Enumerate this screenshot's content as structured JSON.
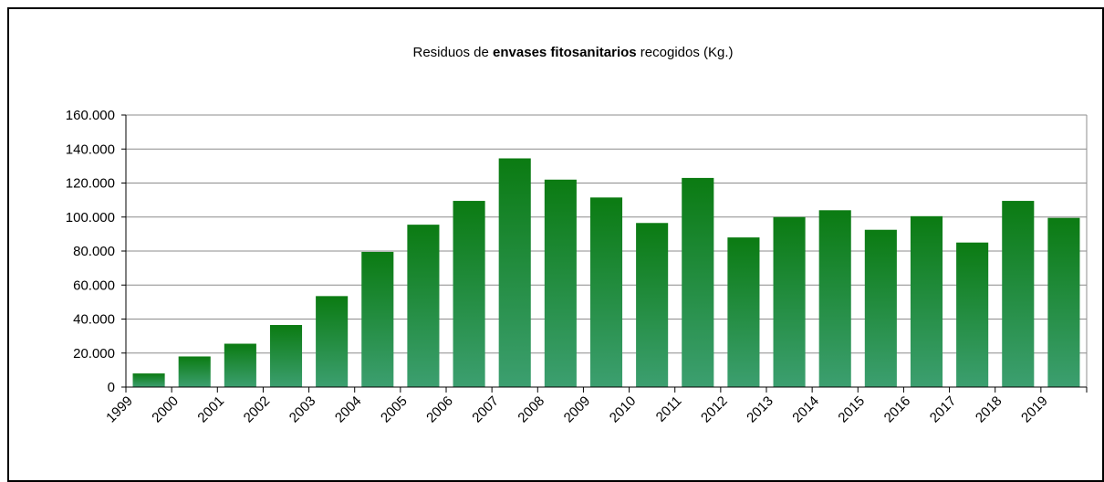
{
  "chart_data": {
    "type": "bar",
    "title": [
      "Residuos de",
      "envases fitosanitarios",
      "recogidos (Kg.)"
    ],
    "categories": [
      "1999",
      "2000",
      "2001",
      "2002",
      "2003",
      "2004",
      "2005",
      "2006",
      "2007",
      "2008",
      "2009",
      "2010",
      "2011",
      "2012",
      "2013",
      "2014",
      "2015",
      "2016",
      "2017",
      "2018",
      "2019"
    ],
    "values": [
      8000,
      18000,
      25500,
      36500,
      53500,
      79500,
      95500,
      109500,
      134500,
      122000,
      111500,
      96500,
      123000,
      88000,
      100000,
      104000,
      92500,
      100500,
      85000,
      109500,
      99500
    ],
    "color": [
      "#0b7b12",
      "#3c9f70"
    ],
    "ylim": [
      0,
      160000
    ],
    "yticks": [
      0,
      {
        "value": 20000,
        "label": "20.000"
      },
      {
        "value": 40000,
        "label": "40.000"
      },
      {
        "value": 60000,
        "label": "60.000"
      },
      {
        "value": 80000,
        "label": "80.000"
      },
      {
        "value": 100000,
        "label": "100.000"
      },
      {
        "value": 120000,
        "label": "120.000"
      },
      {
        "value": 140000,
        "label": "140.000"
      },
      {
        "value": 160000,
        "label": "160.000"
      }
    ],
    "grid": true
  }
}
